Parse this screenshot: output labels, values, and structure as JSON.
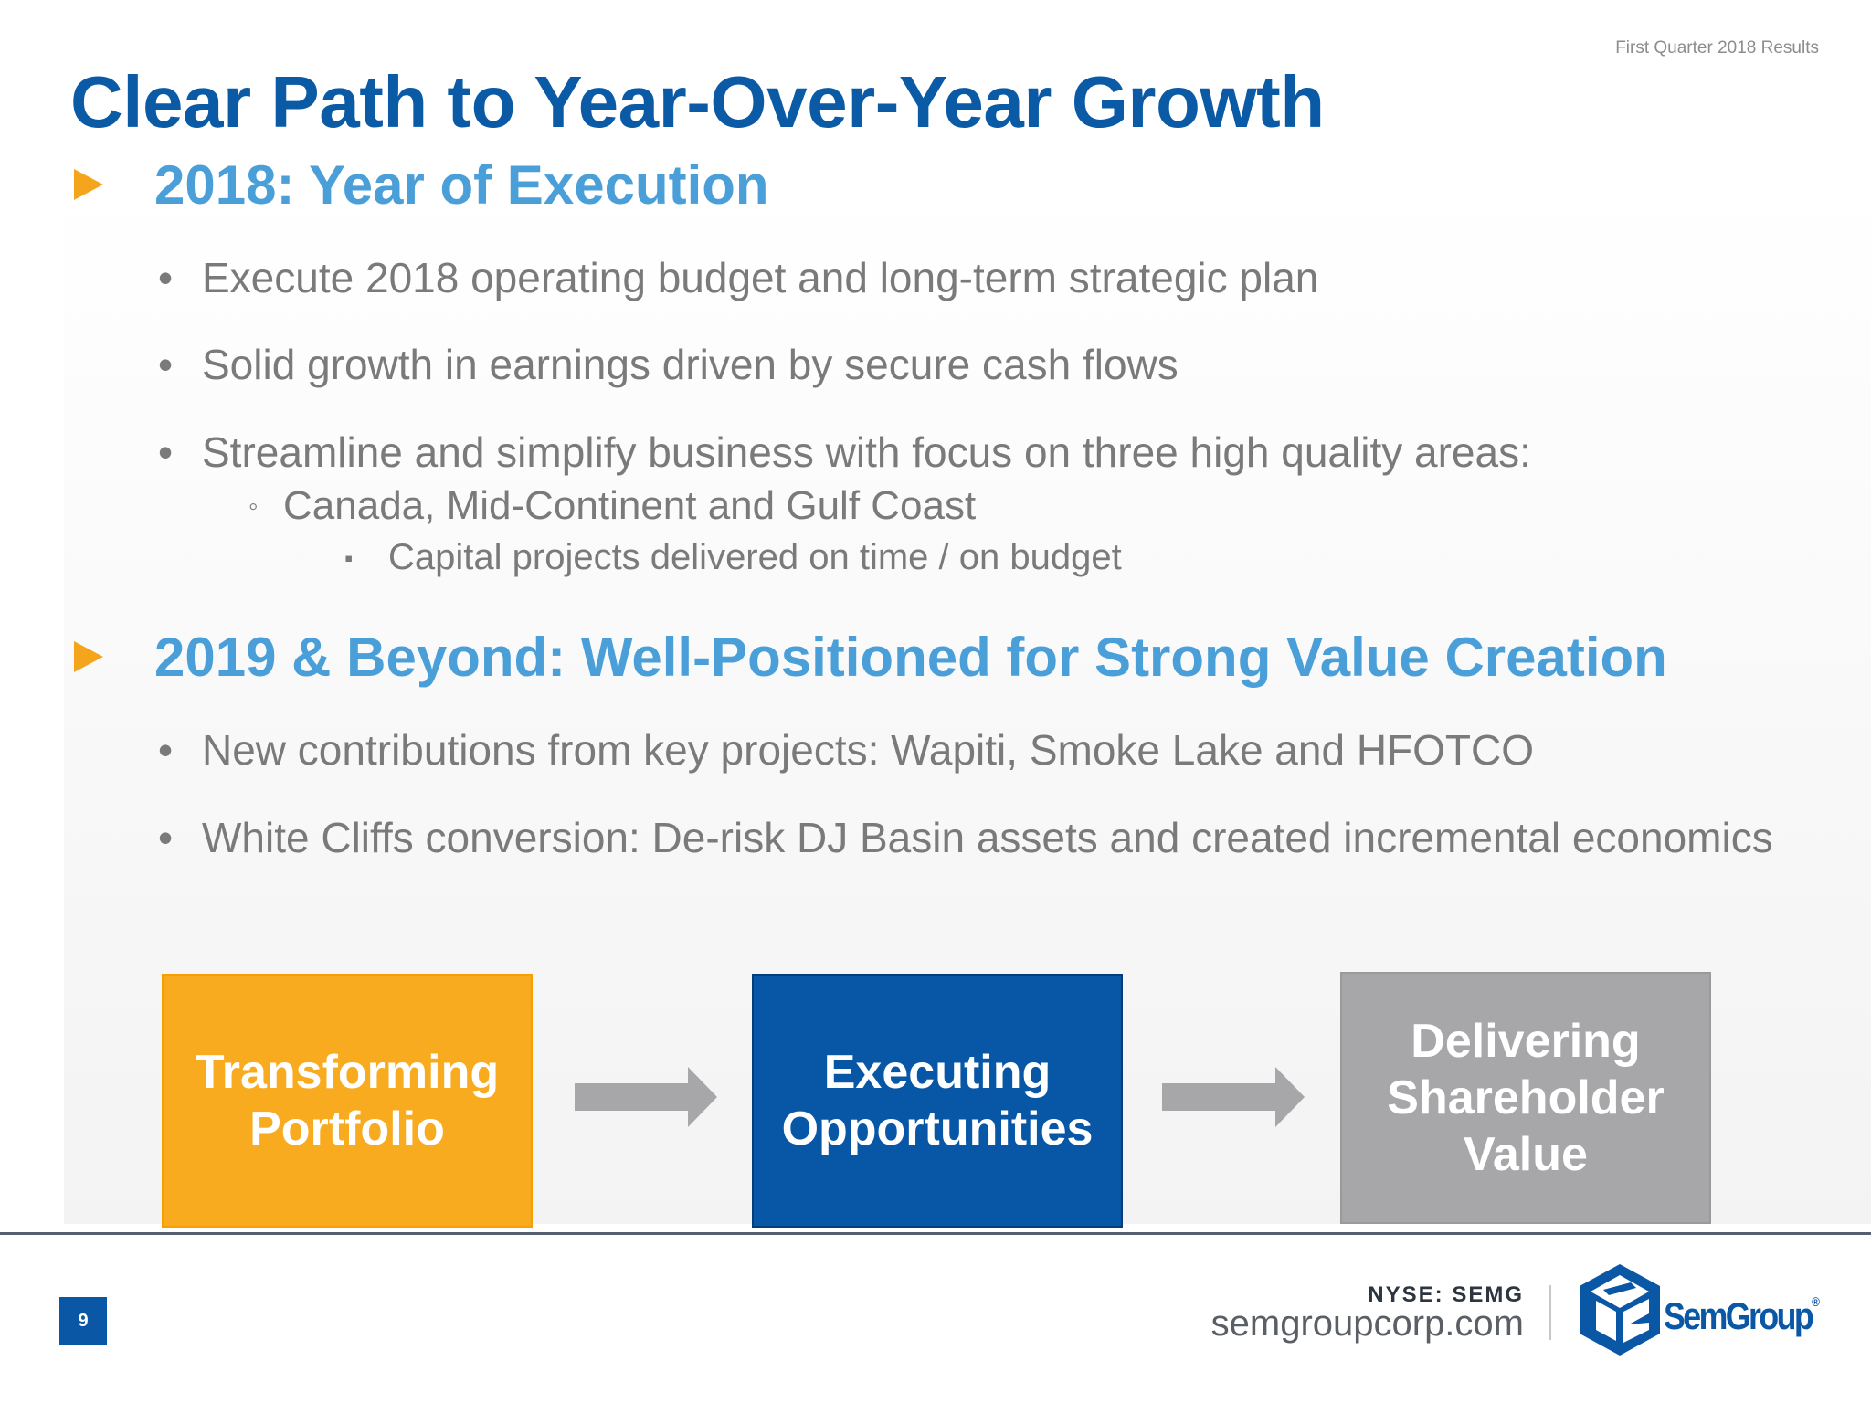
{
  "header": {
    "top_label": "First Quarter 2018 Results",
    "title": "Clear Path to Year-Over-Year Growth"
  },
  "sections": [
    {
      "title": "2018: Year of Execution",
      "bullets": [
        "Execute 2018 operating budget and long-term strategic plan",
        "Solid growth in earnings driven by secure cash flows",
        "Streamline and simplify business with focus on three high quality areas:"
      ],
      "sub_bullet": "Canada, Mid-Continent and Gulf Coast",
      "sub_sub_bullet": "Capital projects delivered on time / on budget"
    },
    {
      "title": "2019 & Beyond: Well-Positioned for Strong Value Creation",
      "bullets": [
        "New contributions from key projects: Wapiti, Smoke Lake and HFOTCO",
        "White Cliffs conversion: De-risk DJ Basin assets and created incremental economics"
      ]
    }
  ],
  "bullet_marks": {
    "level1": "•",
    "level2": "◦",
    "level3": "▪"
  },
  "flow": {
    "boxes": [
      {
        "lines": [
          "Transforming",
          "Portfolio"
        ],
        "color": "#f8ab1e"
      },
      {
        "lines": [
          "Executing",
          "Opportunities"
        ],
        "color": "#0757a6"
      },
      {
        "lines": [
          "Delivering",
          "Shareholder",
          "Value"
        ],
        "color": "#a7a7a9"
      }
    ],
    "arrow_color": "#a7a7a9"
  },
  "footer": {
    "page_number": "9",
    "ticker": "NYSE: SEMG",
    "website": "semgroupcorp.com",
    "logo_text": "SemGroup",
    "logo_reg": "®",
    "logo_icon": "semgroup-cube-icon"
  },
  "colors": {
    "title_blue": "#0a5aa6",
    "section_blue": "#4a9fd8",
    "accent_orange": "#f5a51b",
    "body_gray": "#7a7a7a"
  }
}
